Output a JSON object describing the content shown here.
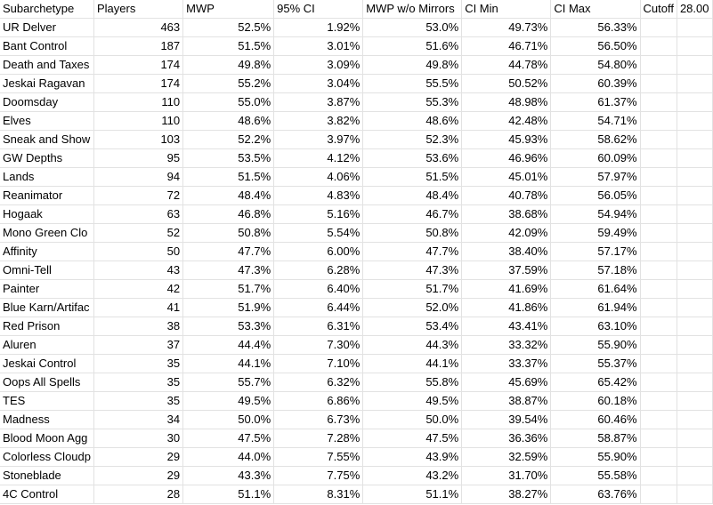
{
  "headers": [
    "Subarchetype",
    "Players",
    "MWP",
    "95% CI",
    "MWP w/o Mirrors",
    "CI Min",
    "CI Max",
    "Cutoff",
    "28.00"
  ],
  "rows": [
    [
      "UR Delver",
      "463",
      "52.5%",
      "1.92%",
      "53.0%",
      "49.73%",
      "56.33%"
    ],
    [
      "Bant Control",
      "187",
      "51.5%",
      "3.01%",
      "51.6%",
      "46.71%",
      "56.50%"
    ],
    [
      "Death and Taxes",
      "174",
      "49.8%",
      "3.09%",
      "49.8%",
      "44.78%",
      "54.80%"
    ],
    [
      "Jeskai Ragavan",
      "174",
      "55.2%",
      "3.04%",
      "55.5%",
      "50.52%",
      "60.39%"
    ],
    [
      "Doomsday",
      "110",
      "55.0%",
      "3.87%",
      "55.3%",
      "48.98%",
      "61.37%"
    ],
    [
      "Elves",
      "110",
      "48.6%",
      "3.82%",
      "48.6%",
      "42.48%",
      "54.71%"
    ],
    [
      "Sneak and Show",
      "103",
      "52.2%",
      "3.97%",
      "52.3%",
      "45.93%",
      "58.62%"
    ],
    [
      "GW Depths",
      "95",
      "53.5%",
      "4.12%",
      "53.6%",
      "46.96%",
      "60.09%"
    ],
    [
      "Lands",
      "94",
      "51.5%",
      "4.06%",
      "51.5%",
      "45.01%",
      "57.97%"
    ],
    [
      "Reanimator",
      "72",
      "48.4%",
      "4.83%",
      "48.4%",
      "40.78%",
      "56.05%"
    ],
    [
      "Hogaak",
      "63",
      "46.8%",
      "5.16%",
      "46.7%",
      "38.68%",
      "54.94%"
    ],
    [
      "Mono Green Clo",
      "52",
      "50.8%",
      "5.54%",
      "50.8%",
      "42.09%",
      "59.49%"
    ],
    [
      "Affinity",
      "50",
      "47.7%",
      "6.00%",
      "47.7%",
      "38.40%",
      "57.17%"
    ],
    [
      "Omni-Tell",
      "43",
      "47.3%",
      "6.28%",
      "47.3%",
      "37.59%",
      "57.18%"
    ],
    [
      "Painter",
      "42",
      "51.7%",
      "6.40%",
      "51.7%",
      "41.69%",
      "61.64%"
    ],
    [
      "Blue Karn/Artifac",
      "41",
      "51.9%",
      "6.44%",
      "52.0%",
      "41.86%",
      "61.94%"
    ],
    [
      "Red Prison",
      "38",
      "53.3%",
      "6.31%",
      "53.4%",
      "43.41%",
      "63.10%"
    ],
    [
      "Aluren",
      "37",
      "44.4%",
      "7.30%",
      "44.3%",
      "33.32%",
      "55.90%"
    ],
    [
      "Jeskai Control",
      "35",
      "44.1%",
      "7.10%",
      "44.1%",
      "33.37%",
      "55.37%"
    ],
    [
      "Oops All Spells",
      "35",
      "55.7%",
      "6.32%",
      "55.8%",
      "45.69%",
      "65.42%"
    ],
    [
      "TES",
      "35",
      "49.5%",
      "6.86%",
      "49.5%",
      "38.87%",
      "60.18%"
    ],
    [
      "Madness",
      "34",
      "50.0%",
      "6.73%",
      "50.0%",
      "39.54%",
      "60.46%"
    ],
    [
      "Blood Moon Agg",
      "30",
      "47.5%",
      "7.28%",
      "47.5%",
      "36.36%",
      "58.87%"
    ],
    [
      "Colorless Cloudp",
      "29",
      "44.0%",
      "7.55%",
      "43.9%",
      "32.59%",
      "55.90%"
    ],
    [
      "Stoneblade",
      "29",
      "43.3%",
      "7.75%",
      "43.2%",
      "31.70%",
      "55.58%"
    ],
    [
      "4C Control",
      "28",
      "51.1%",
      "8.31%",
      "51.1%",
      "38.27%",
      "63.76%"
    ]
  ]
}
